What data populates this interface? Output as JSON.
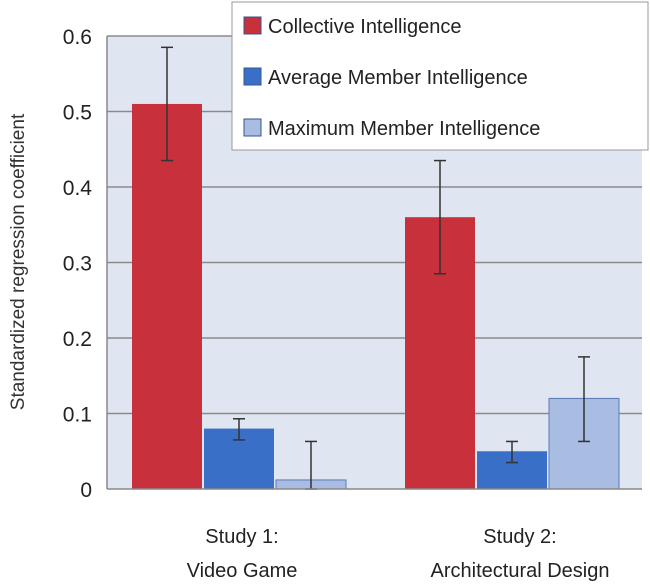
{
  "chart_data": {
    "type": "bar",
    "title": "",
    "xlabel": "",
    "ylabel": "Standardized regression coefficient",
    "ylim": [
      0,
      0.6
    ],
    "yticks": [
      0,
      0.1,
      0.2,
      0.3,
      0.4,
      0.5,
      0.6
    ],
    "ytick_labels": [
      "0",
      "0.1",
      "0.2",
      "0.3",
      "0.4",
      "0.5",
      "0.6"
    ],
    "grid": true,
    "legend_position": "top-right",
    "categories": [
      [
        "Study 1:",
        "Video Game"
      ],
      [
        "Study 2:",
        "Architectural Design"
      ]
    ],
    "series": [
      {
        "name": "Collective Intelligence",
        "color": "#c8303c",
        "values": [
          0.51,
          0.36
        ],
        "error_low": [
          0.435,
          0.285
        ],
        "error_high": [
          0.585,
          0.435
        ]
      },
      {
        "name": "Average Member Intelligence",
        "color": "#3a6fc8",
        "values": [
          0.08,
          0.05
        ],
        "error_low": [
          0.065,
          0.035
        ],
        "error_high": [
          0.093,
          0.063
        ]
      },
      {
        "name": "Maximum Member Intelligence",
        "color": "#a9bde3",
        "values": [
          0.012,
          0.12
        ],
        "error_low": [
          0.0,
          0.063
        ],
        "error_high": [
          0.063,
          0.175
        ]
      }
    ]
  }
}
